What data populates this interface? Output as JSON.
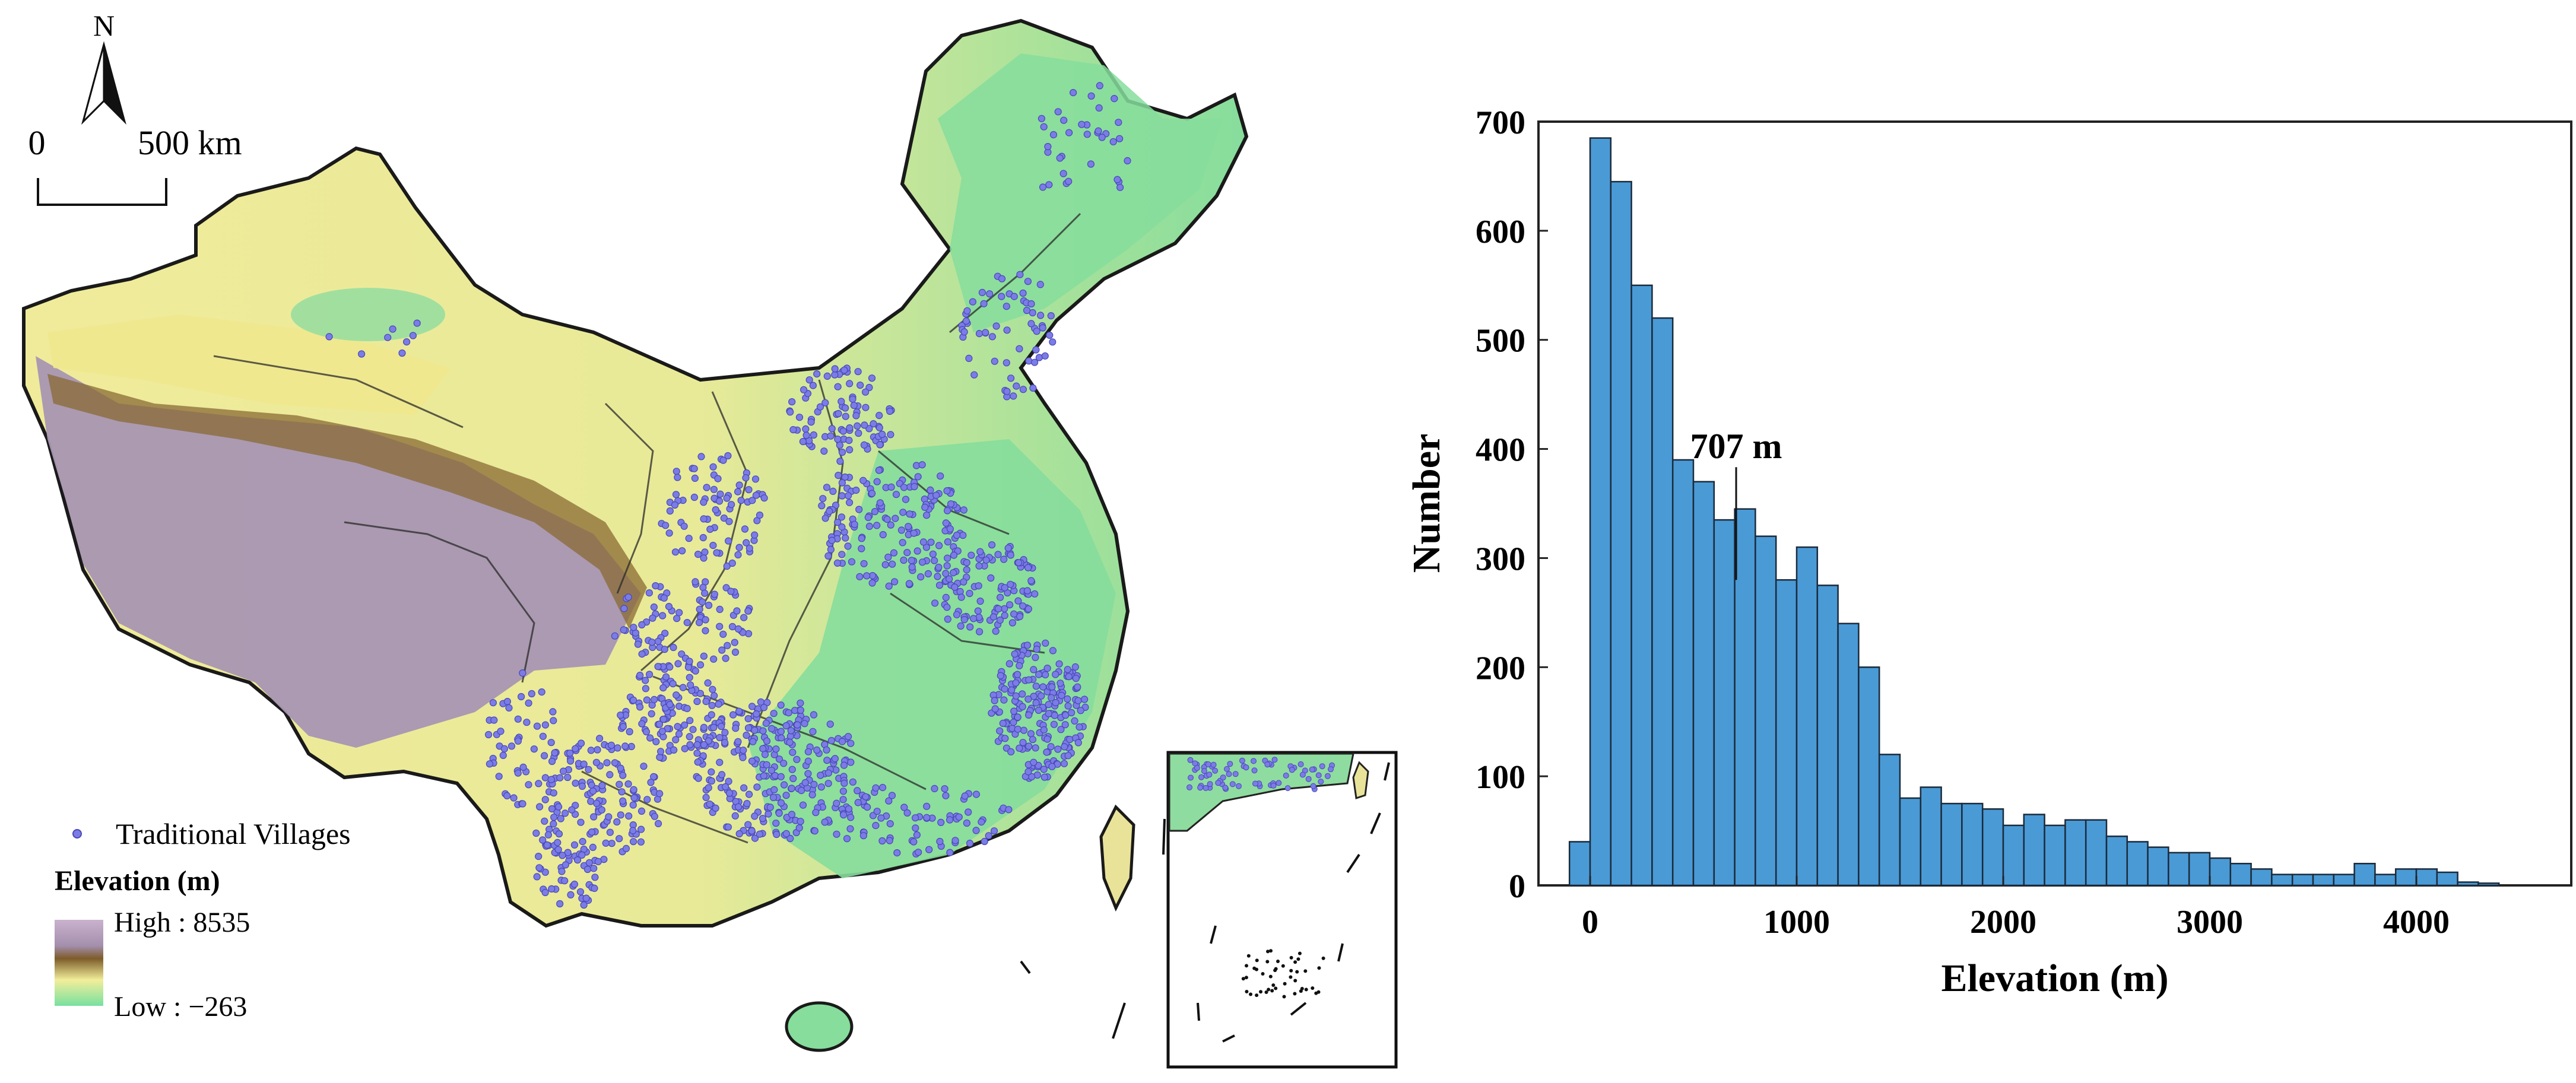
{
  "map": {
    "north_label": "N",
    "scale_start": "0",
    "scale_end": "500 km",
    "legend_villages": "Traditional Villages",
    "legend_elevation_title": "Elevation (m)",
    "legend_high": "High : 8535",
    "legend_low": "Low : −263",
    "colors": {
      "high": "#c9b2cc",
      "mid_brown": "#7d5c2a",
      "mid_yellow": "#f2ee9a",
      "low": "#78e0a0",
      "village_dot": "#7c7ce6",
      "village_edge": "#4848b8"
    }
  },
  "chart_data": {
    "type": "bar",
    "xlabel": "Elevation (m)",
    "ylabel": "Number",
    "xlim": [
      -250,
      4750
    ],
    "ylim": [
      0,
      700
    ],
    "xticks": [
      0,
      1000,
      2000,
      3000,
      4000
    ],
    "yticks": [
      0,
      100,
      200,
      300,
      400,
      500,
      600,
      700
    ],
    "bin_width": 100,
    "bin_starts": [
      -100,
      0,
      100,
      200,
      300,
      400,
      500,
      600,
      700,
      800,
      900,
      1000,
      1100,
      1200,
      1300,
      1400,
      1500,
      1600,
      1700,
      1800,
      1900,
      2000,
      2100,
      2200,
      2300,
      2400,
      2500,
      2600,
      2700,
      2800,
      2900,
      3000,
      3100,
      3200,
      3300,
      3400,
      3500,
      3600,
      3700,
      3800,
      3900,
      4000,
      4100,
      4200,
      4300
    ],
    "values": [
      40,
      685,
      645,
      550,
      520,
      390,
      370,
      335,
      345,
      320,
      280,
      310,
      275,
      240,
      200,
      120,
      80,
      90,
      75,
      75,
      70,
      55,
      65,
      55,
      60,
      60,
      45,
      40,
      35,
      30,
      30,
      25,
      20,
      15,
      10,
      10,
      10,
      10,
      20,
      10,
      15,
      15,
      12,
      3,
      2
    ],
    "bar_color": "#4a9ad6",
    "bar_edge": "#1b2b3b",
    "annotation": {
      "label": "707 m",
      "x": 707,
      "y": 280
    },
    "grid": false
  }
}
